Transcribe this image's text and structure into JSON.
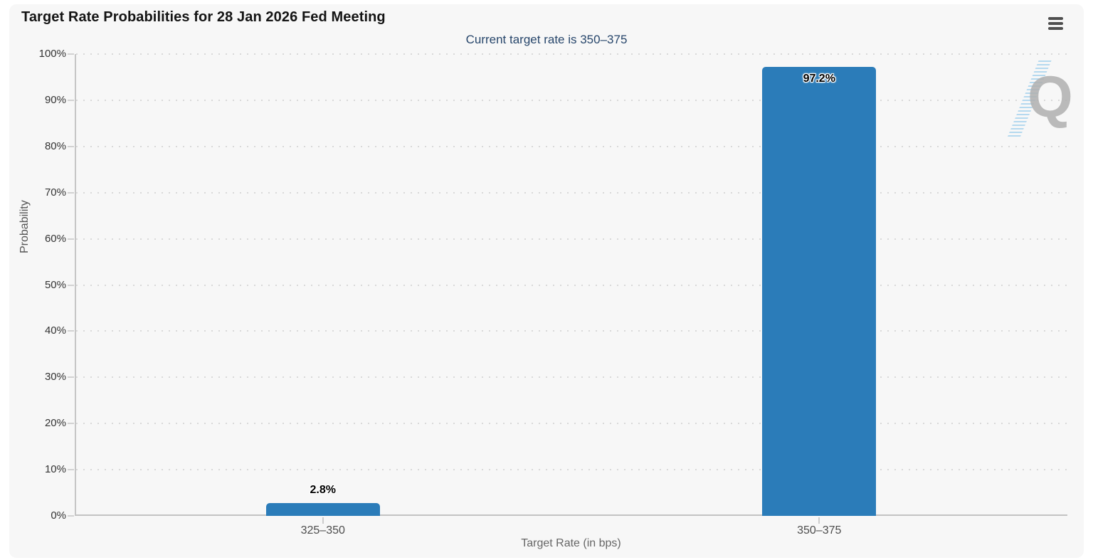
{
  "chart_data": {
    "type": "bar",
    "title": "Target Rate Probabilities for 28 Jan 2026 Fed Meeting",
    "subtitle": "Current target rate is 350–375",
    "xlabel": "Target Rate (in bps)",
    "ylabel": "Probability",
    "categories": [
      "325–350",
      "350–375"
    ],
    "values": [
      2.8,
      97.2
    ],
    "value_labels": [
      "2.8%",
      "97.2%"
    ],
    "ylim": [
      0,
      100
    ],
    "yticks": [
      0,
      10,
      20,
      30,
      40,
      50,
      60,
      70,
      80,
      90,
      100
    ],
    "ytick_suffix": "%",
    "grid": "horizontal-dotted",
    "legend": "none",
    "bar_color": "#2b7cb9"
  },
  "menu": {
    "icon": "hamburger-menu"
  },
  "watermark": {
    "letter": "Q"
  },
  "colors": {
    "card_background": "#f7f7f7",
    "bar": "#2b7cb9",
    "subtitle_text": "#27466b",
    "gridline": "#d9d9d9",
    "axis_line": "#c3c3c3",
    "watermark_grey": "#b0b0b0",
    "watermark_blue": "#b5d9ef"
  }
}
